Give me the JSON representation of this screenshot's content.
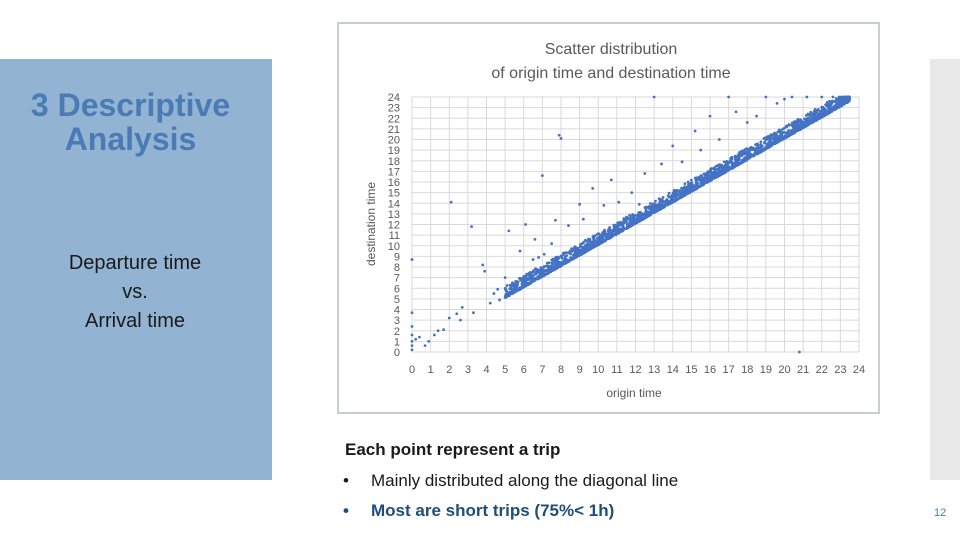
{
  "slide": {
    "section_title": "3 Descriptive Analysis",
    "subtitle_lines": [
      "Departure time",
      "vs.",
      "Arrival time"
    ],
    "caption_heading": "Each point represent a trip",
    "bullets": [
      {
        "marker": "•",
        "text": "Mainly distributed along the diagonal line"
      },
      {
        "marker": "•",
        "text": "Most are short trips (75%< 1h)"
      }
    ],
    "page_number": "12"
  },
  "colors": {
    "panel": "#93b3d3",
    "title": "#4a7bb4",
    "points": "#4472c4",
    "bullet_emphasis": "#1f4e79"
  },
  "chart_data": {
    "type": "scatter",
    "title_lines": [
      "Scatter distribution",
      "of origin time and destination time"
    ],
    "xlabel": "origin time",
    "ylabel": "destination time",
    "xlim": [
      0,
      24
    ],
    "ylim": [
      0,
      24
    ],
    "x_ticks": [
      "0",
      "1",
      "2",
      "3",
      "4",
      "5",
      "6",
      "7",
      "8",
      "9",
      "10",
      "11",
      "12",
      "13",
      "14",
      "15",
      "16",
      "17",
      "18",
      "19",
      "20",
      "21",
      "22",
      "23",
      "24"
    ],
    "y_ticks": [
      "0",
      "1",
      "2",
      "3",
      "4",
      "5",
      "6",
      "7",
      "8",
      "9",
      "10",
      "11",
      "12",
      "13",
      "14",
      "15",
      "16",
      "17",
      "18",
      "19",
      "20",
      "21",
      "22",
      "23",
      "24"
    ],
    "grid": true,
    "legend": "none",
    "diagonal_band": {
      "x_start": 5.0,
      "x_end": 23.5,
      "trip_offset_min_h": 0.1,
      "trip_offset_max_h": 1.2
    },
    "series": [
      {
        "values": [
          [
            0.0,
            0.2
          ],
          [
            0.0,
            0.6
          ],
          [
            0.0,
            1.0
          ],
          [
            0.0,
            1.6
          ],
          [
            0.0,
            2.4
          ],
          [
            0.0,
            3.7
          ],
          [
            0.0,
            8.7
          ],
          [
            0.2,
            1.2
          ],
          [
            0.4,
            1.4
          ],
          [
            0.7,
            0.6
          ],
          [
            0.9,
            1.0
          ],
          [
            1.2,
            1.6
          ],
          [
            1.4,
            2.0
          ],
          [
            1.7,
            2.1
          ],
          [
            2.0,
            3.2
          ],
          [
            2.1,
            14.1
          ],
          [
            2.4,
            3.6
          ],
          [
            2.6,
            3.0
          ],
          [
            2.7,
            4.2
          ],
          [
            3.2,
            11.8
          ],
          [
            3.3,
            3.7
          ],
          [
            3.8,
            8.2
          ],
          [
            3.9,
            7.6
          ],
          [
            4.2,
            4.6
          ],
          [
            4.4,
            5.5
          ],
          [
            4.6,
            5.9
          ],
          [
            4.7,
            4.9
          ],
          [
            5.0,
            7.0
          ],
          [
            5.2,
            11.4
          ],
          [
            5.5,
            5.9
          ],
          [
            5.7,
            6.6
          ],
          [
            5.8,
            9.5
          ],
          [
            5.9,
            6.4
          ],
          [
            6.1,
            12.0
          ],
          [
            6.3,
            7.4
          ],
          [
            6.5,
            8.7
          ],
          [
            6.6,
            10.6
          ],
          [
            6.8,
            8.9
          ],
          [
            7.0,
            16.6
          ],
          [
            7.1,
            9.2
          ],
          [
            7.5,
            10.2
          ],
          [
            7.7,
            12.4
          ],
          [
            7.9,
            20.4
          ],
          [
            8.0,
            20.1
          ],
          [
            8.4,
            11.9
          ],
          [
            9.0,
            13.9
          ],
          [
            9.2,
            12.5
          ],
          [
            9.7,
            15.4
          ],
          [
            10.3,
            13.8
          ],
          [
            10.7,
            16.2
          ],
          [
            11.1,
            14.1
          ],
          [
            11.8,
            15.0
          ],
          [
            12.2,
            13.9
          ],
          [
            12.5,
            16.8
          ],
          [
            13.0,
            24.0
          ],
          [
            13.4,
            17.7
          ],
          [
            14.0,
            19.4
          ],
          [
            14.5,
            17.9
          ],
          [
            15.2,
            20.8
          ],
          [
            15.5,
            19.0
          ],
          [
            16.0,
            22.2
          ],
          [
            16.5,
            20.0
          ],
          [
            17.0,
            24.0
          ],
          [
            17.4,
            22.6
          ],
          [
            18.0,
            21.6
          ],
          [
            18.5,
            22.2
          ],
          [
            19.0,
            24.0
          ],
          [
            19.6,
            23.4
          ],
          [
            20.0,
            23.8
          ],
          [
            20.4,
            24.0
          ],
          [
            20.8,
            0.0
          ],
          [
            21.2,
            24.0
          ],
          [
            22.0,
            24.0
          ],
          [
            22.6,
            24.0
          ]
        ]
      }
    ]
  }
}
